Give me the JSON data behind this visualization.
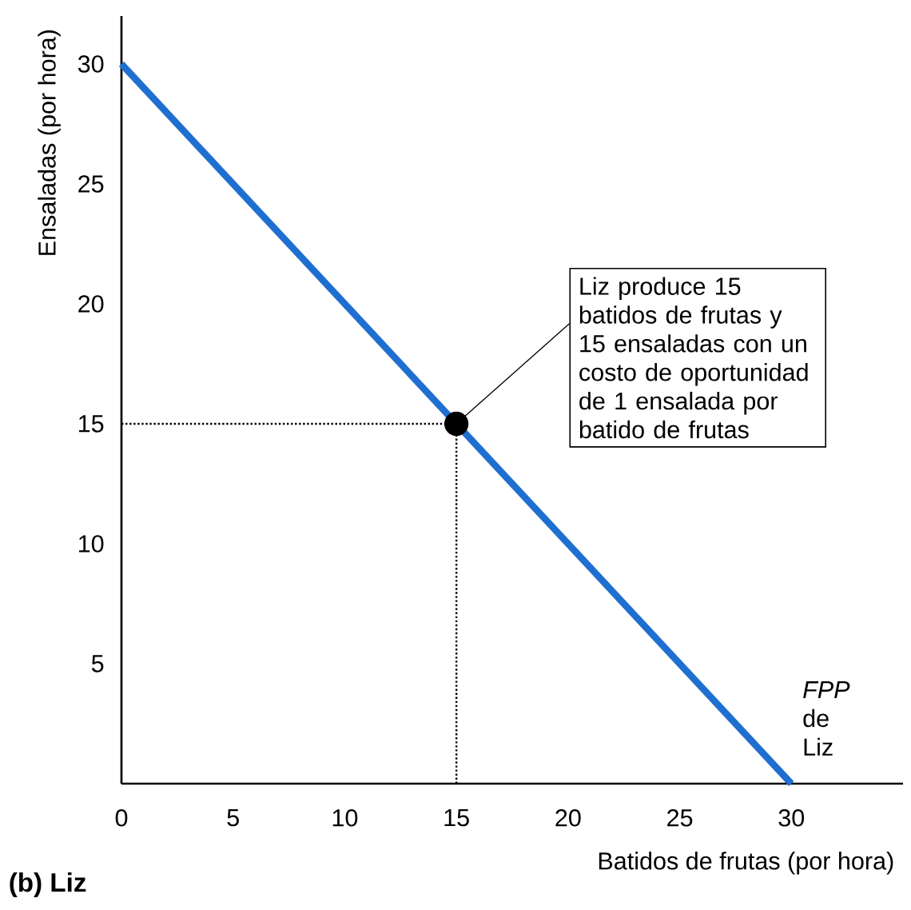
{
  "chart_data": {
    "type": "line",
    "title": "(b) Liz",
    "xlabel": "Batidos de frutas (por hora)",
    "ylabel": "Ensaladas (por hora)",
    "xlim": [
      0,
      35
    ],
    "ylim": [
      0,
      32
    ],
    "xticks": [
      0,
      5,
      10,
      15,
      20,
      25,
      30
    ],
    "yticks": [
      5,
      10,
      15,
      20,
      25,
      30
    ],
    "grid": false,
    "series": [
      {
        "name": "*FPP* de Liz",
        "color": "#1f6fd0",
        "x": [
          0,
          30
        ],
        "values": [
          30,
          0
        ]
      },
      {
        "type": "line",
        "line_style": "dotted",
        "color": "#000000",
        "x": [
          0,
          15
        ],
        "values": [
          15,
          15
        ]
      },
      {
        "type": "line",
        "line_style": "dotted",
        "color": "#000000",
        "x": [
          15,
          15
        ],
        "values": [
          0,
          15
        ]
      },
      {
        "type": "scatter",
        "marker": "circle",
        "color": "#000000",
        "x": [
          15
        ],
        "values": [
          15
        ]
      }
    ],
    "annotations": [
      {
        "text": "Liz produce 15 batidos de frutas y 15 ensaladas con un costo de oportunidad de 1 ensalada por batido de frutas",
        "x": 15,
        "y": 15
      }
    ]
  }
}
